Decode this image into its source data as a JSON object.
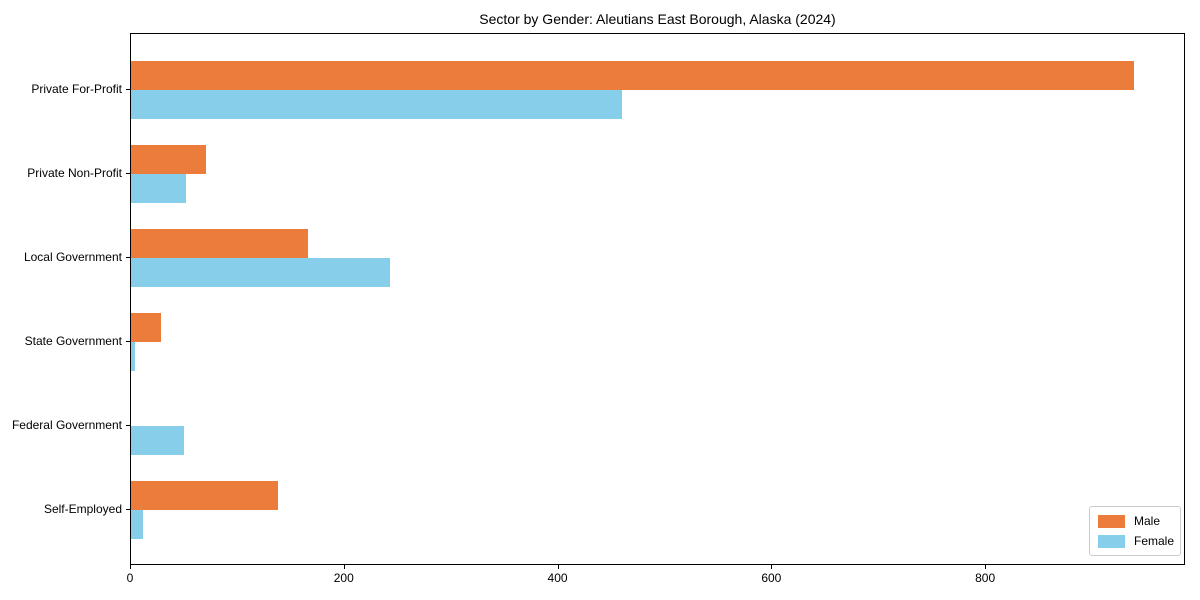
{
  "title": "Sector by Gender: Aleutians East Borough, Alaska (2024)",
  "chart_data": {
    "type": "bar",
    "orientation": "horizontal",
    "title": "Sector by Gender: Aleutians East Borough, Alaska (2024)",
    "xlabel": "",
    "ylabel": "",
    "categories": [
      "Private For-Profit",
      "Private Non-Profit",
      "Local Government",
      "State Government",
      "Federal Government",
      "Self-Employed"
    ],
    "series": [
      {
        "name": "Male",
        "color": "#EC7C3B",
        "values": [
          940,
          70,
          166,
          28,
          0,
          138
        ]
      },
      {
        "name": "Female",
        "color": "#87CEEB",
        "values": [
          460,
          52,
          243,
          4,
          50,
          11
        ]
      }
    ],
    "xlim": [
      0,
      987
    ],
    "xticks": [
      0,
      200,
      400,
      600,
      800
    ],
    "grid": false,
    "legend_position": "lower right",
    "frame_color": "#000000"
  }
}
